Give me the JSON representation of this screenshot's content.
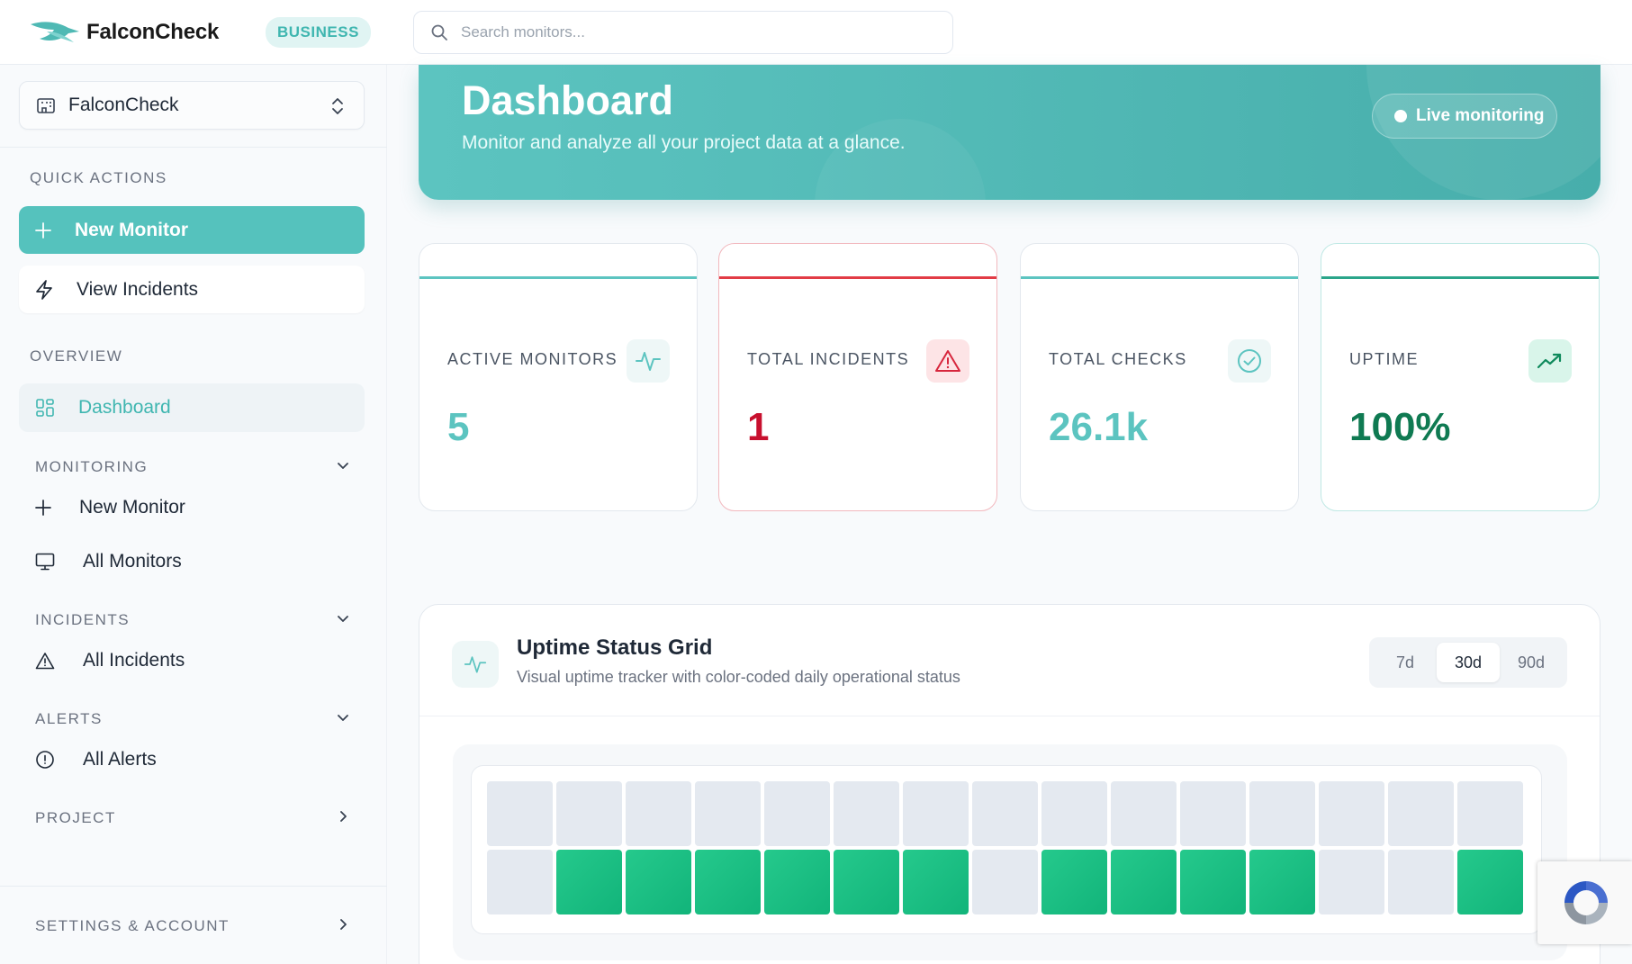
{
  "header": {
    "brand_name": "FalconCheck",
    "plan_badge": "BUSINESS",
    "search_placeholder": "Search monitors..."
  },
  "sidebar": {
    "project_select": {
      "value": "FalconCheck"
    },
    "quick_actions_label": "QUICK ACTIONS",
    "quick_actions": [
      {
        "label": "New Monitor",
        "icon": "plus-icon"
      },
      {
        "label": "View Incidents",
        "icon": "bolt-icon"
      }
    ],
    "overview_label": "OVERVIEW",
    "dashboard_label": "Dashboard",
    "groups": {
      "monitoring": {
        "label": "MONITORING",
        "items": [
          "New Monitor",
          "All Monitors"
        ]
      },
      "incidents": {
        "label": "INCIDENTS",
        "items": [
          "All Incidents"
        ]
      },
      "alerts": {
        "label": "ALERTS",
        "items": [
          "All Alerts"
        ]
      },
      "project": {
        "label": "PROJECT"
      },
      "settings": {
        "label": "SETTINGS & ACCOUNT"
      }
    }
  },
  "hero": {
    "title": "Dashboard",
    "subtitle": "Monitor and analyze all your project data at a glance.",
    "live_label": "Live monitoring"
  },
  "stats": [
    {
      "label": "ACTIVE MONITORS",
      "value": "5",
      "icon": "activity-icon",
      "color": "#5cc4c0"
    },
    {
      "label": "TOTAL INCIDENTS",
      "value": "1",
      "icon": "warning-icon",
      "color": "#c8102e"
    },
    {
      "label": "TOTAL CHECKS",
      "value": "26.1k",
      "icon": "check-circle-icon",
      "color": "#5cc4c0"
    },
    {
      "label": "UPTIME",
      "value": "100%",
      "icon": "trending-up-icon",
      "color": "#0f7a52"
    }
  ],
  "uptime_panel": {
    "title": "Uptime Status Grid",
    "subtitle": "Visual uptime tracker with color-coded daily operational status",
    "ranges": [
      "7d",
      "30d",
      "90d"
    ],
    "selected_range": "30d",
    "rows": [
      [
        "unknown",
        "unknown",
        "unknown",
        "unknown",
        "unknown",
        "unknown",
        "unknown",
        "unknown",
        "unknown",
        "unknown",
        "unknown",
        "unknown",
        "unknown",
        "unknown",
        "unknown"
      ],
      [
        "unknown",
        "up",
        "up",
        "up",
        "up",
        "up",
        "up",
        "unknown",
        "up",
        "up",
        "up",
        "up",
        "unknown",
        "unknown",
        "up"
      ]
    ]
  },
  "colors": {
    "accent": "#55c2bd",
    "up": "#19bd80",
    "unknown": "#e4e9f0",
    "incident": "#c8102e"
  }
}
